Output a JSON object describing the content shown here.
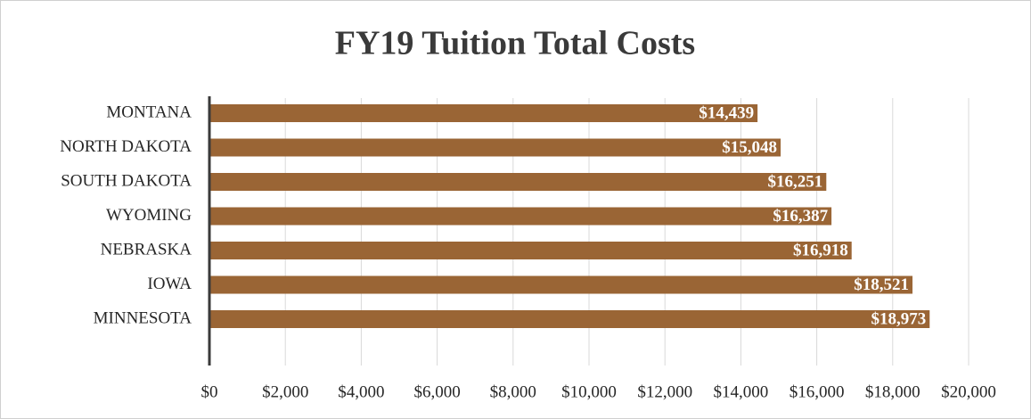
{
  "chart_data": {
    "type": "bar",
    "orientation": "horizontal",
    "title": "FY19 Tuition Total Costs",
    "categories": [
      "MONTANA",
      "NORTH DAKOTA",
      "SOUTH DAKOTA",
      "WYOMING",
      "NEBRASKA",
      "IOWA",
      "MINNESOTA"
    ],
    "values": [
      14439,
      15048,
      16251,
      16387,
      16918,
      18521,
      18973
    ],
    "value_labels": [
      "$14,439",
      "$15,048",
      "$16,251",
      "$16,387",
      "$16,918",
      "$18,521",
      "$18,973"
    ],
    "color": "#9a6535",
    "xlim": [
      0,
      20000
    ],
    "xticks": [
      {
        "value": 0,
        "label": "$0"
      },
      {
        "value": 2000,
        "label": "$2,000"
      },
      {
        "value": 4000,
        "label": "$4,000"
      },
      {
        "value": 6000,
        "label": "$6,000"
      },
      {
        "value": 8000,
        "label": "$8,000"
      },
      {
        "value": 10000,
        "label": "$10,000"
      },
      {
        "value": 12000,
        "label": "$12,000"
      },
      {
        "value": 14000,
        "label": "$14,000"
      },
      {
        "value": 16000,
        "label": "$16,000"
      },
      {
        "value": 18000,
        "label": "$18,000"
      },
      {
        "value": 20000,
        "label": "$20,000"
      }
    ],
    "grid": true
  }
}
